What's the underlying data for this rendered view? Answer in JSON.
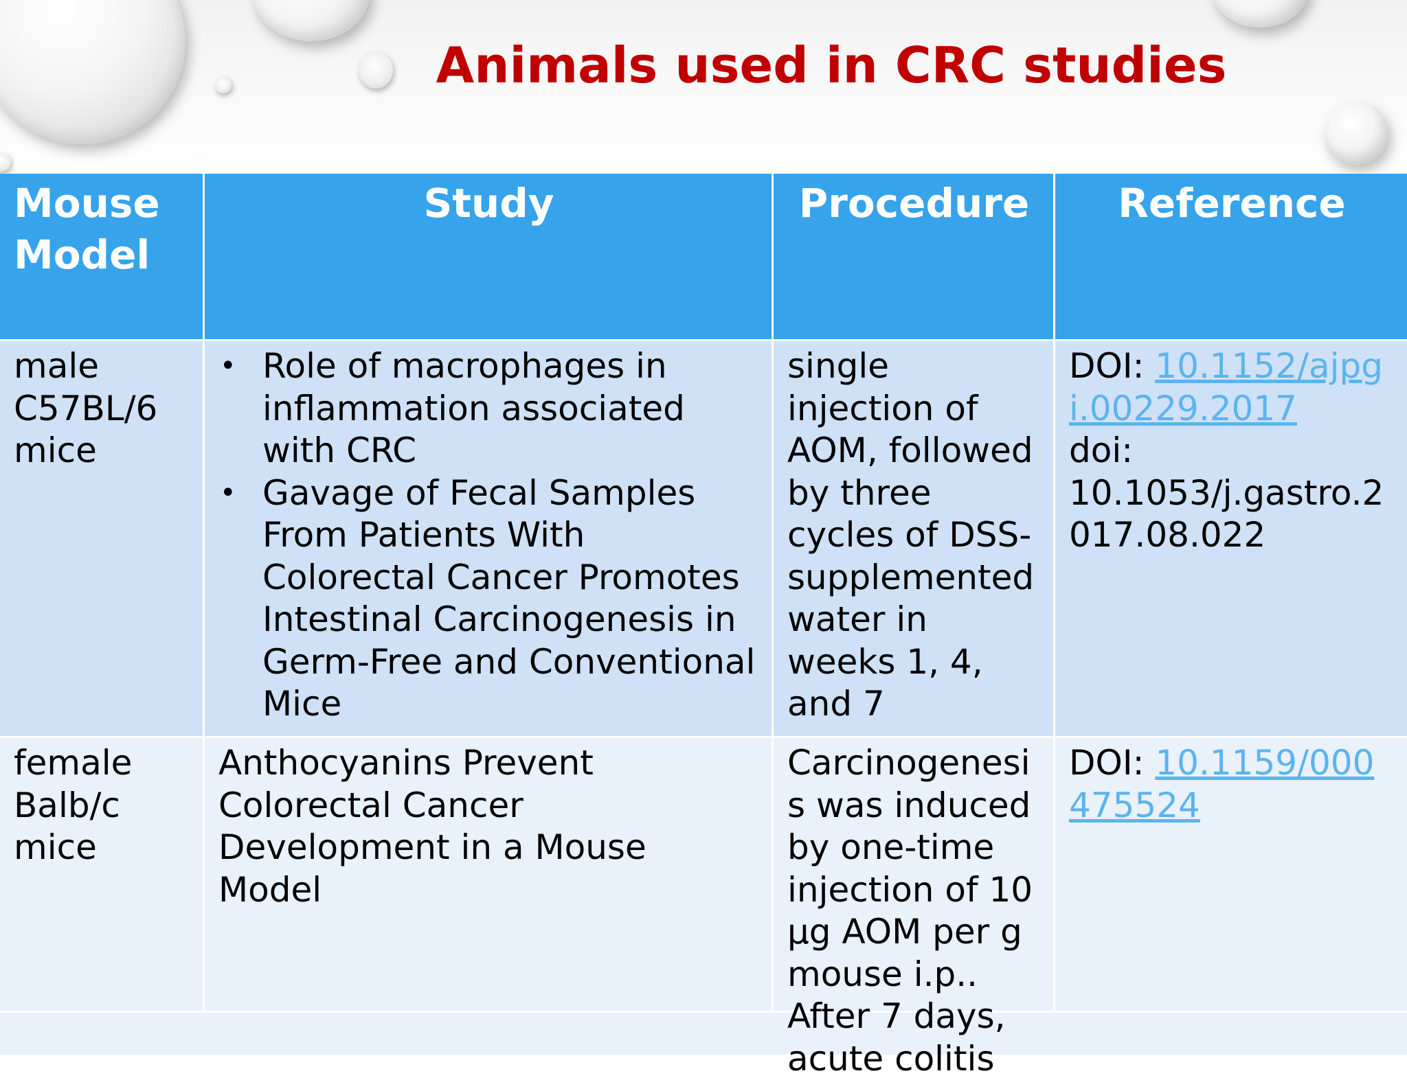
{
  "slide": {
    "title": "Animals used in CRC studies"
  },
  "table": {
    "headers": {
      "mouse_model": "Mouse Model",
      "study": "Study",
      "procedure": "Procedure",
      "reference": "Reference"
    },
    "rows": [
      {
        "mouse_model": "male C57BL/6 mice",
        "study_bullets": [
          "Role of macrophages in inflammation associated with CRC",
          "Gavage of Fecal Samples From Patients With Colorectal Cancer Promotes Intestinal Carcinogenesis in Germ-Free and Conventional Mice"
        ],
        "procedure": "single injection of AOM, followed by three cycles of DSS-supplemented water in weeks 1, 4, and 7",
        "reference_prefix": "DOI: ",
        "reference_link": "10.1152/ajpgi.00229.2017",
        "reference_extra": "doi: 10.1053/j.gastro.2017.08.022"
      },
      {
        "mouse_model": "female Balb/c mice",
        "study": "Anthocyanins Prevent Colorectal Cancer Development in a Mouse Model",
        "procedure": "Carcinogenesis was induced by one-time injection of 10 µg AOM per g mouse i.p.. After 7 days, acute colitis",
        "reference_prefix": "DOI: ",
        "reference_link": "10.1159/000475524"
      }
    ]
  }
}
